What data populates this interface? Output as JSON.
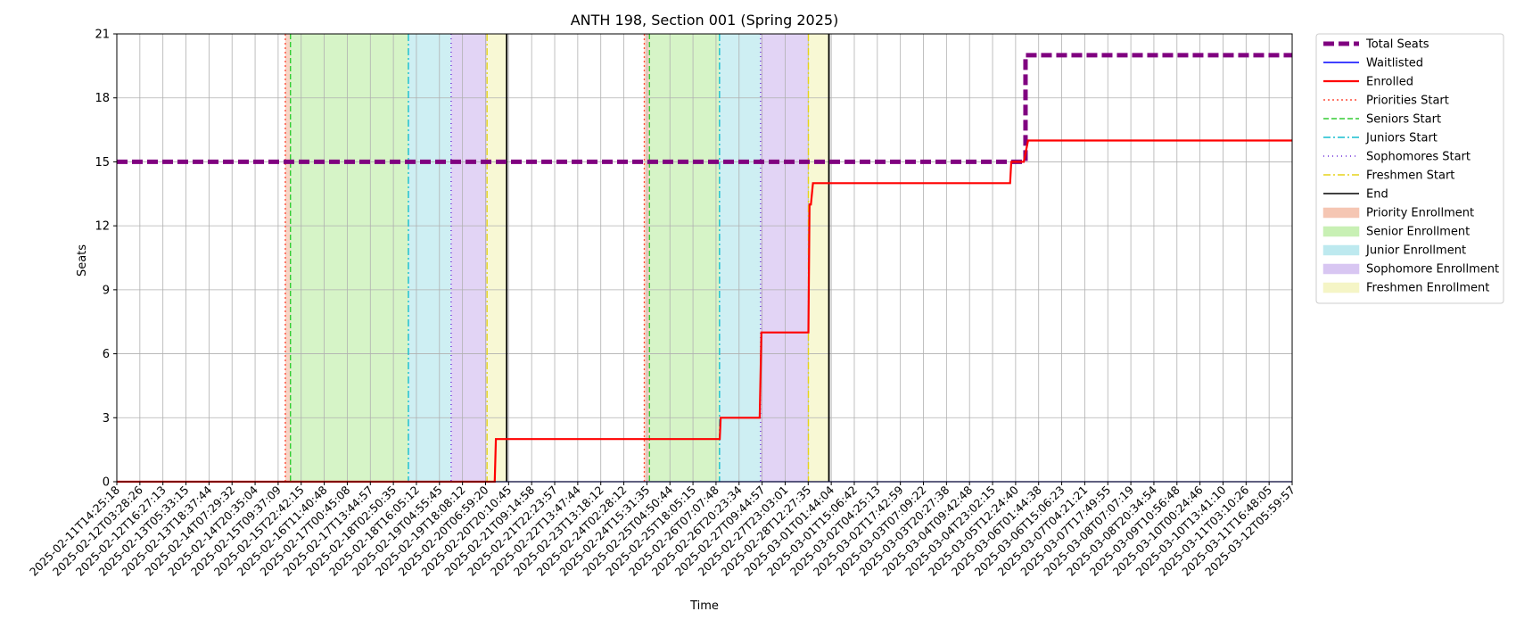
{
  "chart_data": {
    "type": "line",
    "title": "ANTH 198, Section 001 (Spring 2025)",
    "xlabel": "Time",
    "ylabel": "Seats",
    "ylim": [
      0,
      21
    ],
    "yticks": [
      0,
      3,
      6,
      9,
      12,
      15,
      18,
      21
    ],
    "grid": true,
    "legend_position": "outside-top-right",
    "xlim": [
      "2025-02-11T14:25:18",
      "2025-03-12T05:59:57"
    ],
    "xtick_labels": [
      "2025-02-11T14:25:18",
      "2025-02-12T03:28:26",
      "2025-02-12T16:27:13",
      "2025-02-13T05:33:15",
      "2025-02-13T18:37:44",
      "2025-02-14T07:29:32",
      "2025-02-14T20:35:04",
      "2025-02-15T09:37:09",
      "2025-02-15T22:42:15",
      "2025-02-16T11:40:48",
      "2025-02-17T00:45:08",
      "2025-02-17T13:44:57",
      "2025-02-18T02:50:35",
      "2025-02-18T16:05:12",
      "2025-02-19T04:55:45",
      "2025-02-19T18:08:12",
      "2025-02-20T06:59:20",
      "2025-02-20T20:10:45",
      "2025-02-21T09:14:58",
      "2025-02-21T22:23:57",
      "2025-02-22T13:47:44",
      "2025-02-23T13:18:12",
      "2025-02-24T02:28:12",
      "2025-02-24T15:31:35",
      "2025-02-25T04:50:44",
      "2025-02-25T18:05:15",
      "2025-02-26T07:07:48",
      "2025-02-26T20:23:34",
      "2025-02-27T09:44:57",
      "2025-02-27T23:03:01",
      "2025-02-28T12:27:35",
      "2025-03-01T01:44:04",
      "2025-03-01T15:06:42",
      "2025-03-02T04:25:13",
      "2025-03-02T17:42:59",
      "2025-03-03T07:09:22",
      "2025-03-03T20:27:38",
      "2025-03-04T09:42:48",
      "2025-03-04T23:02:15",
      "2025-03-05T12:24:40",
      "2025-03-06T01:44:38",
      "2025-03-06T15:06:23",
      "2025-03-07T04:21:21",
      "2025-03-07T17:49:55",
      "2025-03-08T07:07:19",
      "2025-03-08T20:34:54",
      "2025-03-09T10:56:48",
      "2025-03-10T00:24:46",
      "2025-03-10T13:41:10",
      "2025-03-11T03:10:26",
      "2025-03-11T16:48:05",
      "2025-03-12T05:59:57"
    ],
    "series": [
      {
        "name": "Total Seats",
        "color": "#800080",
        "style": "dashed-thick",
        "points": [
          [
            "2025-02-11T14:25:18",
            15
          ],
          [
            "2025-03-05T18:00:00",
            15
          ],
          [
            "2025-03-05T18:00:00",
            20
          ],
          [
            "2025-03-12T05:59:57",
            20
          ]
        ]
      },
      {
        "name": "Waitlisted",
        "color": "#0000ff",
        "style": "solid",
        "points": [
          [
            "2025-02-11T14:25:18",
            0
          ],
          [
            "2025-03-12T05:59:57",
            0
          ]
        ]
      },
      {
        "name": "Enrolled",
        "color": "#ff0000",
        "style": "solid",
        "points": [
          [
            "2025-02-11T14:25:18",
            0
          ],
          [
            "2025-02-20T19:30:00",
            0
          ],
          [
            "2025-02-20T20:10:45",
            2
          ],
          [
            "2025-02-26T07:07:48",
            2
          ],
          [
            "2025-02-26T07:40:00",
            3
          ],
          [
            "2025-02-27T06:30:00",
            3
          ],
          [
            "2025-02-27T07:30:00",
            7
          ],
          [
            "2025-02-28T11:00:00",
            7
          ],
          [
            "2025-02-28T11:40:00",
            13
          ],
          [
            "2025-02-28T12:27:35",
            13
          ],
          [
            "2025-02-28T13:40:00",
            14
          ],
          [
            "2025-03-05T09:00:00",
            14
          ],
          [
            "2025-03-05T09:40:00",
            15
          ],
          [
            "2025-03-05T17:00:00",
            15
          ],
          [
            "2025-03-05T19:30:00",
            16
          ],
          [
            "2025-03-12T05:59:57",
            16
          ]
        ]
      }
    ],
    "vlines": [
      {
        "name": "Priorities Start",
        "color": "#ff4d3a",
        "style": "dotted",
        "at": [
          "2025-02-15T17:00:00",
          "2025-02-24T11:00:00"
        ]
      },
      {
        "name": "Seniors Start",
        "color": "#33cc33",
        "style": "dashed",
        "at": [
          "2025-02-15T20:00:00",
          "2025-02-24T14:00:00"
        ]
      },
      {
        "name": "Juniors Start",
        "color": "#17becf",
        "style": "dashdot",
        "at": [
          "2025-02-18T17:00:00",
          "2025-02-26T07:00:00"
        ]
      },
      {
        "name": "Sophomores Start",
        "color": "#6b2bd9",
        "style": "densedot",
        "at": [
          "2025-02-19T18:00:00",
          "2025-02-27T07:00:00"
        ]
      },
      {
        "name": "Freshmen Start",
        "color": "#e6d41a",
        "style": "dashdot",
        "at": [
          "2025-02-20T15:00:00",
          "2025-02-28T11:00:00"
        ]
      },
      {
        "name": "End",
        "color": "#000000",
        "style": "solid",
        "at": [
          "2025-02-21T02:30:00",
          "2025-02-28T23:00:00"
        ]
      }
    ],
    "spans": [
      {
        "name": "Priority Enrollment",
        "color": "#f5c6b3",
        "ranges": [
          [
            "2025-02-15T17:00:00",
            "2025-02-15T20:00:00"
          ],
          [
            "2025-02-24T11:00:00",
            "2025-02-24T14:00:00"
          ]
        ]
      },
      {
        "name": "Senior Enrollment",
        "color": "#c8f0b4",
        "ranges": [
          [
            "2025-02-15T20:00:00",
            "2025-02-18T17:00:00"
          ],
          [
            "2025-02-24T14:00:00",
            "2025-02-26T07:00:00"
          ]
        ]
      },
      {
        "name": "Junior Enrollment",
        "color": "#bde9ef",
        "ranges": [
          [
            "2025-02-18T17:00:00",
            "2025-02-19T18:00:00"
          ],
          [
            "2025-02-26T07:00:00",
            "2025-02-27T07:00:00"
          ]
        ]
      },
      {
        "name": "Sophomore Enrollment",
        "color": "#d8c6f2",
        "ranges": [
          [
            "2025-02-19T18:00:00",
            "2025-02-20T15:00:00"
          ],
          [
            "2025-02-27T07:00:00",
            "2025-02-28T11:00:00"
          ]
        ]
      },
      {
        "name": "Freshmen Enrollment",
        "color": "#f5f5c6",
        "ranges": [
          [
            "2025-02-20T15:00:00",
            "2025-02-21T02:30:00"
          ],
          [
            "2025-02-28T11:00:00",
            "2025-02-28T23:00:00"
          ]
        ]
      }
    ],
    "legend": [
      {
        "label": "Total Seats",
        "kind": "line",
        "color": "#800080",
        "style": "dashed-thick"
      },
      {
        "label": "Waitlisted",
        "kind": "line",
        "color": "#0000ff",
        "style": "solid"
      },
      {
        "label": "Enrolled",
        "kind": "line",
        "color": "#ff0000",
        "style": "solid"
      },
      {
        "label": "Priorities Start",
        "kind": "line",
        "color": "#ff4d3a",
        "style": "dotted"
      },
      {
        "label": "Seniors Start",
        "kind": "line",
        "color": "#33cc33",
        "style": "dashed"
      },
      {
        "label": "Juniors Start",
        "kind": "line",
        "color": "#17becf",
        "style": "dashdot"
      },
      {
        "label": "Sophomores Start",
        "kind": "line",
        "color": "#6b2bd9",
        "style": "densedot"
      },
      {
        "label": "Freshmen Start",
        "kind": "line",
        "color": "#e6d41a",
        "style": "dashdot"
      },
      {
        "label": "End",
        "kind": "line",
        "color": "#000000",
        "style": "solid"
      },
      {
        "label": "Priority Enrollment",
        "kind": "patch",
        "color": "#f5c6b3"
      },
      {
        "label": "Senior Enrollment",
        "kind": "patch",
        "color": "#c8f0b4"
      },
      {
        "label": "Junior Enrollment",
        "kind": "patch",
        "color": "#bde9ef"
      },
      {
        "label": "Sophomore Enrollment",
        "kind": "patch",
        "color": "#d8c6f2"
      },
      {
        "label": "Freshmen Enrollment",
        "kind": "patch",
        "color": "#f5f5c6"
      }
    ]
  }
}
